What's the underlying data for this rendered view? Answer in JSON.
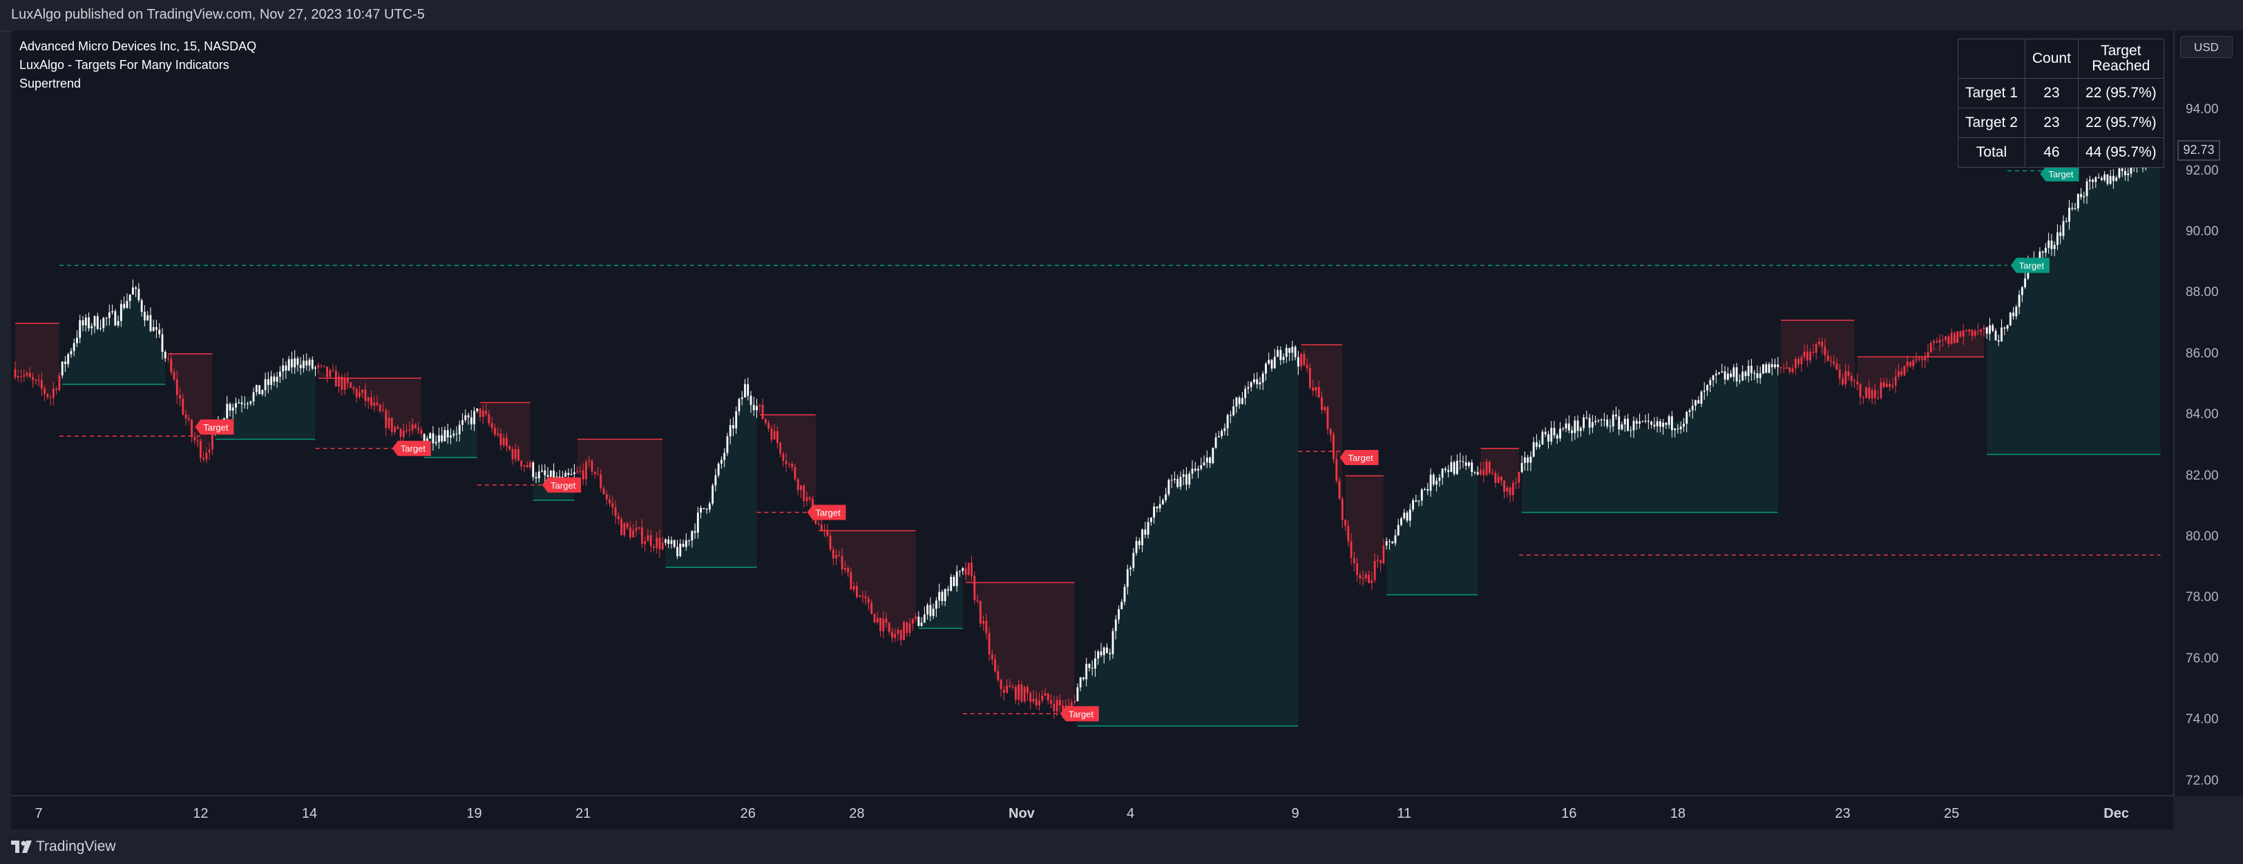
{
  "header": {
    "published": "LuxAlgo published on TradingView.com, Nov 27, 2023 10:47 UTC-5"
  },
  "legend": {
    "symbol": "Advanced Micro Devices Inc, 15, NASDAQ",
    "indicator": "LuxAlgo - Targets For Many Indicators",
    "sub_indicator": "Supertrend"
  },
  "price_scale": {
    "currency_button": "USD",
    "last_price": "92.73"
  },
  "footer": {
    "brand": "TradingView"
  },
  "colors": {
    "bull": "#089981",
    "bear": "#f23645",
    "candle": "#ffffff",
    "background": "#131722"
  },
  "stats_table": {
    "header": [
      "",
      "Count",
      "Target\nReached"
    ],
    "rows": [
      [
        "Target 1",
        "23",
        "22 (95.7%)"
      ],
      [
        "Target 2",
        "23",
        "22 (95.7%)"
      ],
      [
        "Total",
        "46",
        "44 (95.7%)"
      ]
    ]
  },
  "chart_data": {
    "type": "candlestick",
    "title": "Advanced Micro Devices Inc, 15, NASDAQ",
    "ylim": [
      71,
      96
    ],
    "y_ticks": [
      "94.00",
      "92.00",
      "90.00",
      "88.00",
      "86.00",
      "84.00",
      "82.00",
      "80.00",
      "78.00",
      "76.00",
      "74.00",
      "72.00"
    ],
    "x_ticks": [
      {
        "label": "7",
        "bold": false
      },
      {
        "label": "12",
        "bold": false
      },
      {
        "label": "14",
        "bold": false
      },
      {
        "label": "19",
        "bold": false
      },
      {
        "label": "21",
        "bold": false
      },
      {
        "label": "26",
        "bold": false
      },
      {
        "label": "28",
        "bold": false
      },
      {
        "label": "Nov",
        "bold": true
      },
      {
        "label": "4",
        "bold": false
      },
      {
        "label": "9",
        "bold": false
      },
      {
        "label": "11",
        "bold": false
      },
      {
        "label": "16",
        "bold": false
      },
      {
        "label": "18",
        "bold": false
      },
      {
        "label": "23",
        "bold": false
      },
      {
        "label": "25",
        "bold": false
      },
      {
        "label": "Dec",
        "bold": true
      }
    ],
    "x_tick_index": [
      8,
      63,
      100,
      156,
      193,
      249,
      286,
      342,
      379,
      435,
      472,
      528,
      565,
      621,
      658,
      714
    ],
    "n_bars": 730,
    "close_path": [
      [
        0,
        85.5
      ],
      [
        12,
        84.6
      ],
      [
        22,
        86.9
      ],
      [
        34,
        87.2
      ],
      [
        40,
        88.1
      ],
      [
        50,
        86.2
      ],
      [
        60,
        83.3
      ],
      [
        64,
        82.7
      ],
      [
        72,
        84.3
      ],
      [
        82,
        84.7
      ],
      [
        96,
        85.8
      ],
      [
        108,
        85.2
      ],
      [
        118,
        84.6
      ],
      [
        128,
        83.6
      ],
      [
        140,
        83.3
      ],
      [
        150,
        83.5
      ],
      [
        158,
        84.1
      ],
      [
        166,
        83.0
      ],
      [
        178,
        82.0
      ],
      [
        186,
        81.8
      ],
      [
        196,
        82.3
      ],
      [
        206,
        80.3
      ],
      [
        216,
        79.9
      ],
      [
        226,
        79.5
      ],
      [
        236,
        81.3
      ],
      [
        248,
        84.9
      ],
      [
        258,
        83.3
      ],
      [
        266,
        81.8
      ],
      [
        276,
        79.8
      ],
      [
        288,
        77.9
      ],
      [
        298,
        76.7
      ],
      [
        308,
        77.3
      ],
      [
        318,
        78.5
      ],
      [
        324,
        78.9
      ],
      [
        334,
        75.1
      ],
      [
        344,
        74.8
      ],
      [
        352,
        74.6
      ],
      [
        358,
        74.3
      ],
      [
        364,
        75.8
      ],
      [
        372,
        76.3
      ],
      [
        380,
        79.6
      ],
      [
        392,
        81.6
      ],
      [
        404,
        82.3
      ],
      [
        414,
        84.2
      ],
      [
        424,
        85.3
      ],
      [
        432,
        86.3
      ],
      [
        438,
        85.6
      ],
      [
        446,
        83.8
      ],
      [
        452,
        80.1
      ],
      [
        458,
        78.4
      ],
      [
        466,
        79.6
      ],
      [
        476,
        81.3
      ],
      [
        486,
        82.3
      ],
      [
        500,
        82.2
      ],
      [
        508,
        81.4
      ],
      [
        518,
        83.3
      ],
      [
        530,
        83.6
      ],
      [
        542,
        83.8
      ],
      [
        556,
        83.5
      ],
      [
        568,
        83.9
      ],
      [
        578,
        85.2
      ],
      [
        590,
        85.4
      ],
      [
        604,
        85.6
      ],
      [
        612,
        86.3
      ],
      [
        620,
        85.3
      ],
      [
        630,
        84.6
      ],
      [
        640,
        85.3
      ],
      [
        652,
        86.2
      ],
      [
        664,
        86.8
      ],
      [
        676,
        86.6
      ],
      [
        684,
        88.9
      ],
      [
        692,
        89.6
      ],
      [
        702,
        91.3
      ],
      [
        712,
        91.8
      ],
      [
        722,
        92.3
      ],
      [
        729,
        92.73
      ]
    ],
    "supertrend": [
      {
        "start": 0,
        "end": 15,
        "dir": "bear",
        "level": 87.0
      },
      {
        "start": 16,
        "end": 51,
        "dir": "bull",
        "level": 85.0
      },
      {
        "start": 52,
        "end": 67,
        "dir": "bear",
        "level": 86.0
      },
      {
        "start": 68,
        "end": 102,
        "dir": "bull",
        "level": 83.2
      },
      {
        "start": 103,
        "end": 138,
        "dir": "bear",
        "level": 85.2
      },
      {
        "start": 139,
        "end": 157,
        "dir": "bull",
        "level": 82.6
      },
      {
        "start": 158,
        "end": 175,
        "dir": "bear",
        "level": 84.4
      },
      {
        "start": 176,
        "end": 190,
        "dir": "bull",
        "level": 81.2
      },
      {
        "start": 191,
        "end": 220,
        "dir": "bear",
        "level": 83.2
      },
      {
        "start": 221,
        "end": 252,
        "dir": "bull",
        "level": 79.0
      },
      {
        "start": 253,
        "end": 272,
        "dir": "bear",
        "level": 84.0
      },
      {
        "start": 273,
        "end": 306,
        "dir": "bear",
        "level": 80.2
      },
      {
        "start": 307,
        "end": 322,
        "dir": "bull",
        "level": 77.0
      },
      {
        "start": 323,
        "end": 360,
        "dir": "bear",
        "level": 78.5
      },
      {
        "start": 361,
        "end": 436,
        "dir": "bull",
        "level": 73.8
      },
      {
        "start": 437,
        "end": 451,
        "dir": "bear",
        "level": 86.3
      },
      {
        "start": 452,
        "end": 465,
        "dir": "bear",
        "level": 82.0
      },
      {
        "start": 466,
        "end": 497,
        "dir": "bull",
        "level": 78.1
      },
      {
        "start": 498,
        "end": 511,
        "dir": "bear",
        "level": 82.9
      },
      {
        "start": 512,
        "end": 599,
        "dir": "bull",
        "level": 80.8
      },
      {
        "start": 600,
        "end": 625,
        "dir": "bear",
        "level": 87.1
      },
      {
        "start": 626,
        "end": 669,
        "dir": "bear",
        "level": 85.9
      },
      {
        "start": 670,
        "end": 729,
        "dir": "bull",
        "level": 82.7
      }
    ],
    "target_lines": [
      {
        "start": 15,
        "end": 64,
        "level": 83.3,
        "dir": "bear"
      },
      {
        "start": 102,
        "end": 131,
        "level": 82.9,
        "dir": "bear"
      },
      {
        "start": 157,
        "end": 182,
        "level": 81.7,
        "dir": "bear"
      },
      {
        "start": 252,
        "end": 272,
        "level": 80.8,
        "dir": "bear"
      },
      {
        "start": 322,
        "end": 358,
        "level": 74.2,
        "dir": "bear"
      },
      {
        "start": 436,
        "end": 453,
        "level": 82.8,
        "dir": "bear"
      },
      {
        "start": 511,
        "end": 729,
        "level": 79.4,
        "dir": "bear"
      },
      {
        "start": 15,
        "end": 677,
        "level": 88.9,
        "dir": "bull"
      },
      {
        "start": 677,
        "end": 690,
        "level": 92.0,
        "dir": "bull"
      }
    ],
    "target_labels": [
      {
        "index": 63,
        "level": 83.6,
        "dir": "bear",
        "text": "Target"
      },
      {
        "index": 130,
        "level": 82.9,
        "dir": "bear",
        "text": "Target"
      },
      {
        "index": 181,
        "level": 81.7,
        "dir": "bear",
        "text": "Target"
      },
      {
        "index": 271,
        "level": 80.8,
        "dir": "bear",
        "text": "Target"
      },
      {
        "index": 357,
        "level": 74.2,
        "dir": "bear",
        "text": "Target"
      },
      {
        "index": 452,
        "level": 82.6,
        "dir": "bear",
        "text": "Target"
      },
      {
        "index": 680,
        "level": 88.9,
        "dir": "bull",
        "text": "Target"
      },
      {
        "index": 690,
        "level": 91.9,
        "dir": "bull",
        "text": "Target"
      }
    ]
  }
}
